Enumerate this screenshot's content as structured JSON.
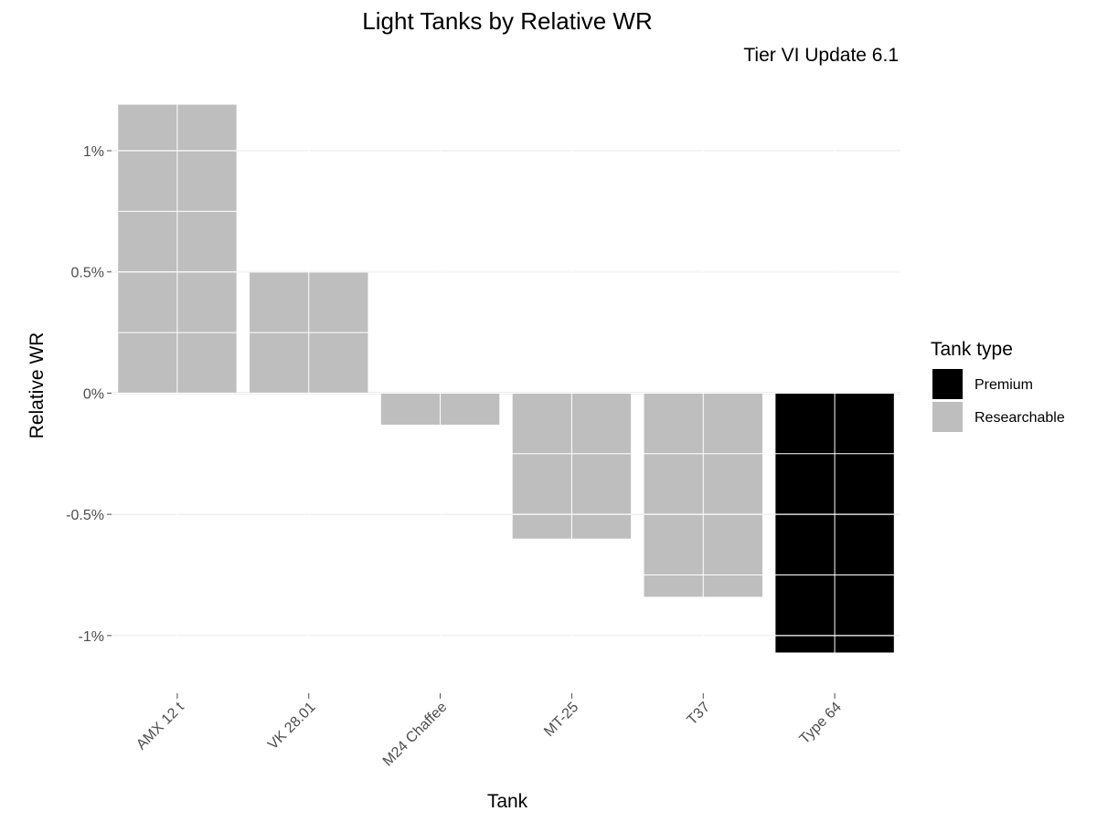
{
  "chart_data": {
    "type": "bar",
    "title": "Light Tanks by Relative WR",
    "subtitle": "Tier VI Update 6.1",
    "xlabel": "Tank",
    "ylabel": "Relative WR",
    "categories": [
      "AMX 12 t",
      "VK 28.01",
      "M24 Chaffee",
      "MT-25",
      "T37",
      "Type 64"
    ],
    "values": [
      1.19,
      0.5,
      -0.13,
      -0.6,
      -0.84,
      -1.07
    ],
    "types": [
      "Researchable",
      "Researchable",
      "Researchable",
      "Researchable",
      "Researchable",
      "Premium"
    ],
    "ylim": [
      -1.17,
      1.26
    ],
    "yticks": [
      1,
      0.5,
      0,
      -0.5,
      -1
    ],
    "ytick_labels": [
      "1%",
      "0.5%",
      "0%",
      "-0.5%",
      "-1%"
    ],
    "grid": true,
    "legend": {
      "title": "Tank type",
      "position": "right",
      "entries": [
        {
          "label": "Premium",
          "color": "#000000"
        },
        {
          "label": "Researchable",
          "color": "#bebebe"
        }
      ]
    }
  }
}
